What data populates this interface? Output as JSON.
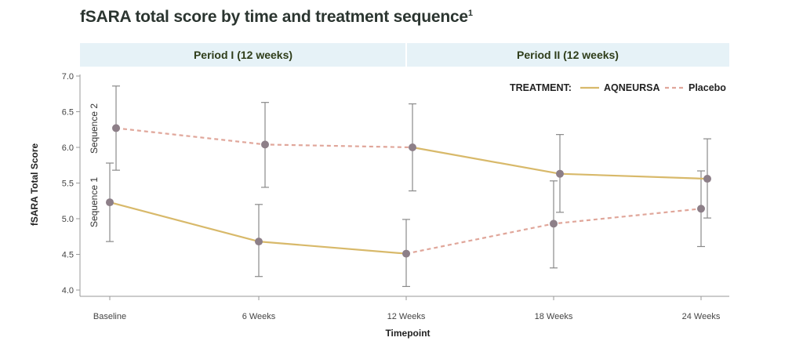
{
  "chart_data": {
    "type": "line",
    "title": "fSARA total score by time and treatment sequence",
    "title_superscript": "1",
    "xlabel": "Timepoint",
    "ylabel": "fSARA Total Score",
    "ylim": [
      4.0,
      7.0
    ],
    "y_ticks": [
      "4.0",
      "4.5",
      "5.0",
      "5.5",
      "6.0",
      "6.5",
      "7.0"
    ],
    "categories": [
      "Baseline",
      "6 Weeks",
      "12 Weeks",
      "18 Weeks",
      "24 Weeks"
    ],
    "periods": [
      {
        "label": "Period I (12 weeks)",
        "from": "Baseline",
        "to": "12 Weeks"
      },
      {
        "label": "Period II (12 weeks)",
        "from": "12 Weeks",
        "to": "24 Weeks"
      }
    ],
    "legend": {
      "title": "TREATMENT:",
      "placement": "top-right",
      "entries": [
        {
          "label": "AQNEURSA",
          "color": "#d8b96a",
          "style": "solid"
        },
        {
          "label": "Placebo",
          "color": "#e0a69a",
          "style": "dashed"
        }
      ]
    },
    "sequences": [
      {
        "label": "Sequence 1",
        "points": [
          {
            "x": "Baseline",
            "y": 5.23,
            "lo": 4.68,
            "hi": 5.78
          },
          {
            "x": "6 Weeks",
            "y": 4.68,
            "lo": 4.19,
            "hi": 5.2
          },
          {
            "x": "12 Weeks",
            "y": 4.51,
            "lo": 4.05,
            "hi": 4.99
          },
          {
            "x": "18 Weeks",
            "y": 4.93,
            "lo": 4.31,
            "hi": 5.53
          },
          {
            "x": "24 Weeks",
            "y": 5.14,
            "lo": 4.61,
            "hi": 5.67
          }
        ],
        "segments": [
          {
            "from": 0,
            "to": 2,
            "treatment": "AQNEURSA"
          },
          {
            "from": 2,
            "to": 4,
            "treatment": "Placebo"
          }
        ]
      },
      {
        "label": "Sequence 2",
        "points": [
          {
            "x": "Baseline",
            "y": 6.27,
            "lo": 5.68,
            "hi": 6.86
          },
          {
            "x": "6 Weeks",
            "y": 6.04,
            "lo": 5.44,
            "hi": 6.63
          },
          {
            "x": "12 Weeks",
            "y": 6.0,
            "lo": 5.39,
            "hi": 6.61
          },
          {
            "x": "18 Weeks",
            "y": 5.63,
            "lo": 5.09,
            "hi": 6.18
          },
          {
            "x": "24 Weeks",
            "y": 5.56,
            "lo": 5.01,
            "hi": 6.12
          }
        ],
        "segments": [
          {
            "from": 0,
            "to": 2,
            "treatment": "Placebo"
          },
          {
            "from": 2,
            "to": 4,
            "treatment": "AQNEURSA"
          }
        ]
      }
    ],
    "grid": false,
    "marker_color": "#8d7f88",
    "errorbar_color": "#8a8a8a",
    "period_band_color": "#e6f2f7"
  }
}
